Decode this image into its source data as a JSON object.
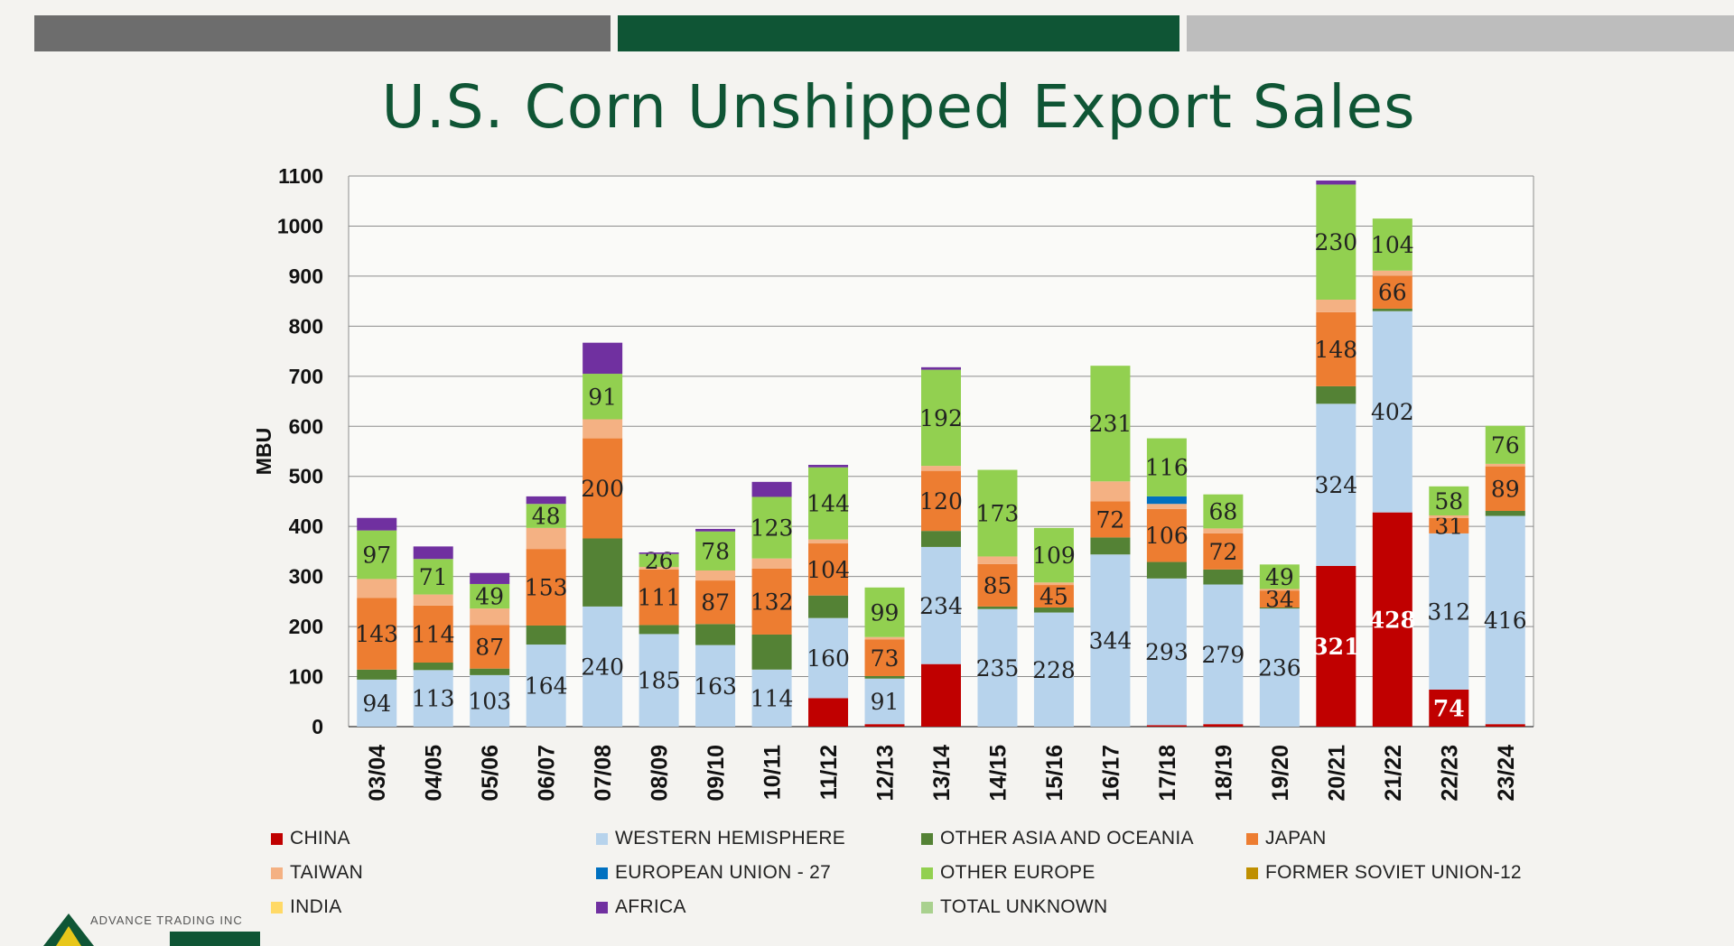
{
  "title": "U.S. Corn Unshipped Export Sales",
  "logo_text": "ADVANCE TRADING INC",
  "chart_data": {
    "type": "bar",
    "stacked": true,
    "ylabel": "MBU",
    "ylim": [
      0,
      1100
    ],
    "yticks": [
      0,
      100,
      200,
      300,
      400,
      500,
      600,
      700,
      800,
      900,
      1000,
      1100
    ],
    "grid": true,
    "legend_position": "bottom",
    "categories": [
      "03/04",
      "04/05",
      "05/06",
      "06/07",
      "07/08",
      "08/09",
      "09/10",
      "10/11",
      "11/12",
      "12/13",
      "13/14",
      "14/15",
      "15/16",
      "16/17",
      "17/18",
      "18/19",
      "19/20",
      "20/21",
      "21/22",
      "22/23",
      "23/24"
    ],
    "series": [
      {
        "name": "CHINA",
        "color": "#c00000",
        "values": [
          0,
          0,
          0,
          0,
          0,
          0,
          0,
          0,
          57,
          5,
          125,
          0,
          0,
          0,
          3,
          5,
          0,
          321,
          428,
          74,
          5
        ]
      },
      {
        "name": "WESTERN HEMISPHERE",
        "color": "#b7d3ec",
        "values": [
          94,
          113,
          103,
          164,
          240,
          185,
          163,
          114,
          160,
          91,
          234,
          235,
          228,
          344,
          293,
          279,
          236,
          324,
          402,
          312,
          416
        ]
      },
      {
        "name": "OTHER ASIA AND OCEANIA",
        "color": "#548235",
        "values": [
          20,
          15,
          13,
          38,
          136,
          18,
          42,
          70,
          45,
          5,
          32,
          5,
          10,
          34,
          33,
          30,
          2,
          35,
          5,
          0,
          10
        ]
      },
      {
        "name": "JAPAN",
        "color": "#ed7d31",
        "values": [
          143,
          114,
          87,
          153,
          200,
          111,
          87,
          132,
          104,
          73,
          120,
          85,
          45,
          72,
          106,
          72,
          34,
          148,
          66,
          31,
          89
        ]
      },
      {
        "name": "TAIWAN",
        "color": "#f4b183",
        "values": [
          38,
          22,
          33,
          42,
          38,
          5,
          20,
          20,
          8,
          5,
          10,
          15,
          5,
          40,
          10,
          10,
          3,
          25,
          10,
          5,
          5
        ]
      },
      {
        "name": "EUROPEAN UNION - 27",
        "color": "#0070c0",
        "values": [
          0,
          0,
          0,
          0,
          0,
          0,
          0,
          0,
          0,
          0,
          0,
          0,
          0,
          0,
          15,
          0,
          0,
          0,
          0,
          0,
          0
        ]
      },
      {
        "name": "OTHER EUROPE",
        "color": "#92d050",
        "values": [
          97,
          71,
          49,
          48,
          91,
          26,
          78,
          123,
          144,
          99,
          192,
          173,
          109,
          231,
          116,
          68,
          49,
          230,
          104,
          58,
          76
        ]
      },
      {
        "name": "FORMER SOVIET UNION-12",
        "color": "#bf8f00",
        "values": [
          0,
          0,
          0,
          0,
          0,
          0,
          0,
          0,
          0,
          0,
          0,
          0,
          0,
          0,
          0,
          0,
          0,
          0,
          0,
          0,
          0
        ]
      },
      {
        "name": "INDIA",
        "color": "#ffd966",
        "values": [
          0,
          0,
          0,
          0,
          0,
          0,
          0,
          0,
          0,
          0,
          0,
          0,
          0,
          0,
          0,
          0,
          0,
          0,
          0,
          0,
          0
        ]
      },
      {
        "name": "AFRICA",
        "color": "#7030a0",
        "values": [
          25,
          25,
          22,
          15,
          62,
          3,
          5,
          30,
          5,
          0,
          5,
          0,
          0,
          0,
          0,
          0,
          0,
          8,
          0,
          0,
          0
        ]
      },
      {
        "name": "TOTAL UNKNOWN",
        "color": "#a9d18e",
        "values": [
          0,
          0,
          0,
          0,
          0,
          0,
          0,
          0,
          0,
          0,
          0,
          0,
          0,
          0,
          0,
          0,
          0,
          0,
          0,
          0,
          0
        ]
      }
    ],
    "data_labels": {
      "CHINA": {
        "17": "321",
        "18": "428",
        "19": "74"
      },
      "WESTERN HEMISPHERE": {
        "0": "94",
        "1": "113",
        "2": "103",
        "3": "164",
        "4": "240",
        "5": "185",
        "6": "163",
        "7": "114",
        "8": "160",
        "9": "91",
        "10": "234",
        "11": "235",
        "12": "228",
        "13": "344",
        "14": "293",
        "15": "279",
        "16": "236",
        "17": "324",
        "18": "402",
        "19": "312",
        "20": "416"
      },
      "JAPAN": {
        "0": "143",
        "1": "114",
        "2": "87",
        "3": "153",
        "4": "200",
        "5": "111",
        "6": "87",
        "7": "132",
        "8": "104",
        "9": "73",
        "10": "120",
        "11": "85",
        "12": "45",
        "13": "72",
        "14": "106",
        "15": "72",
        "16": "34",
        "17": "148",
        "18": "66",
        "19": "31",
        "20": "89"
      },
      "OTHER EUROPE": {
        "0": "97",
        "1": "71",
        "2": "49",
        "3": "48",
        "4": "91",
        "5": "26",
        "6": "78",
        "7": "123",
        "8": "144",
        "9": "99",
        "10": "192",
        "11": "173",
        "12": "109",
        "13": "231",
        "14": "116",
        "15": "68",
        "16": "49",
        "17": "230",
        "18": "104",
        "19": "58",
        "20": "76"
      }
    }
  },
  "legend": [
    {
      "label": "CHINA",
      "color": "#c00000"
    },
    {
      "label": "WESTERN HEMISPHERE",
      "color": "#b7d3ec"
    },
    {
      "label": "OTHER ASIA AND OCEANIA",
      "color": "#548235"
    },
    {
      "label": "JAPAN",
      "color": "#ed7d31"
    },
    {
      "label": "TAIWAN",
      "color": "#f4b183"
    },
    {
      "label": "EUROPEAN UNION - 27",
      "color": "#0070c0"
    },
    {
      "label": "OTHER EUROPE",
      "color": "#92d050"
    },
    {
      "label": "FORMER SOVIET UNION-12",
      "color": "#bf8f00"
    },
    {
      "label": "INDIA",
      "color": "#ffd966"
    },
    {
      "label": "AFRICA",
      "color": "#7030a0"
    },
    {
      "label": "TOTAL UNKNOWN",
      "color": "#a9d18e"
    }
  ]
}
